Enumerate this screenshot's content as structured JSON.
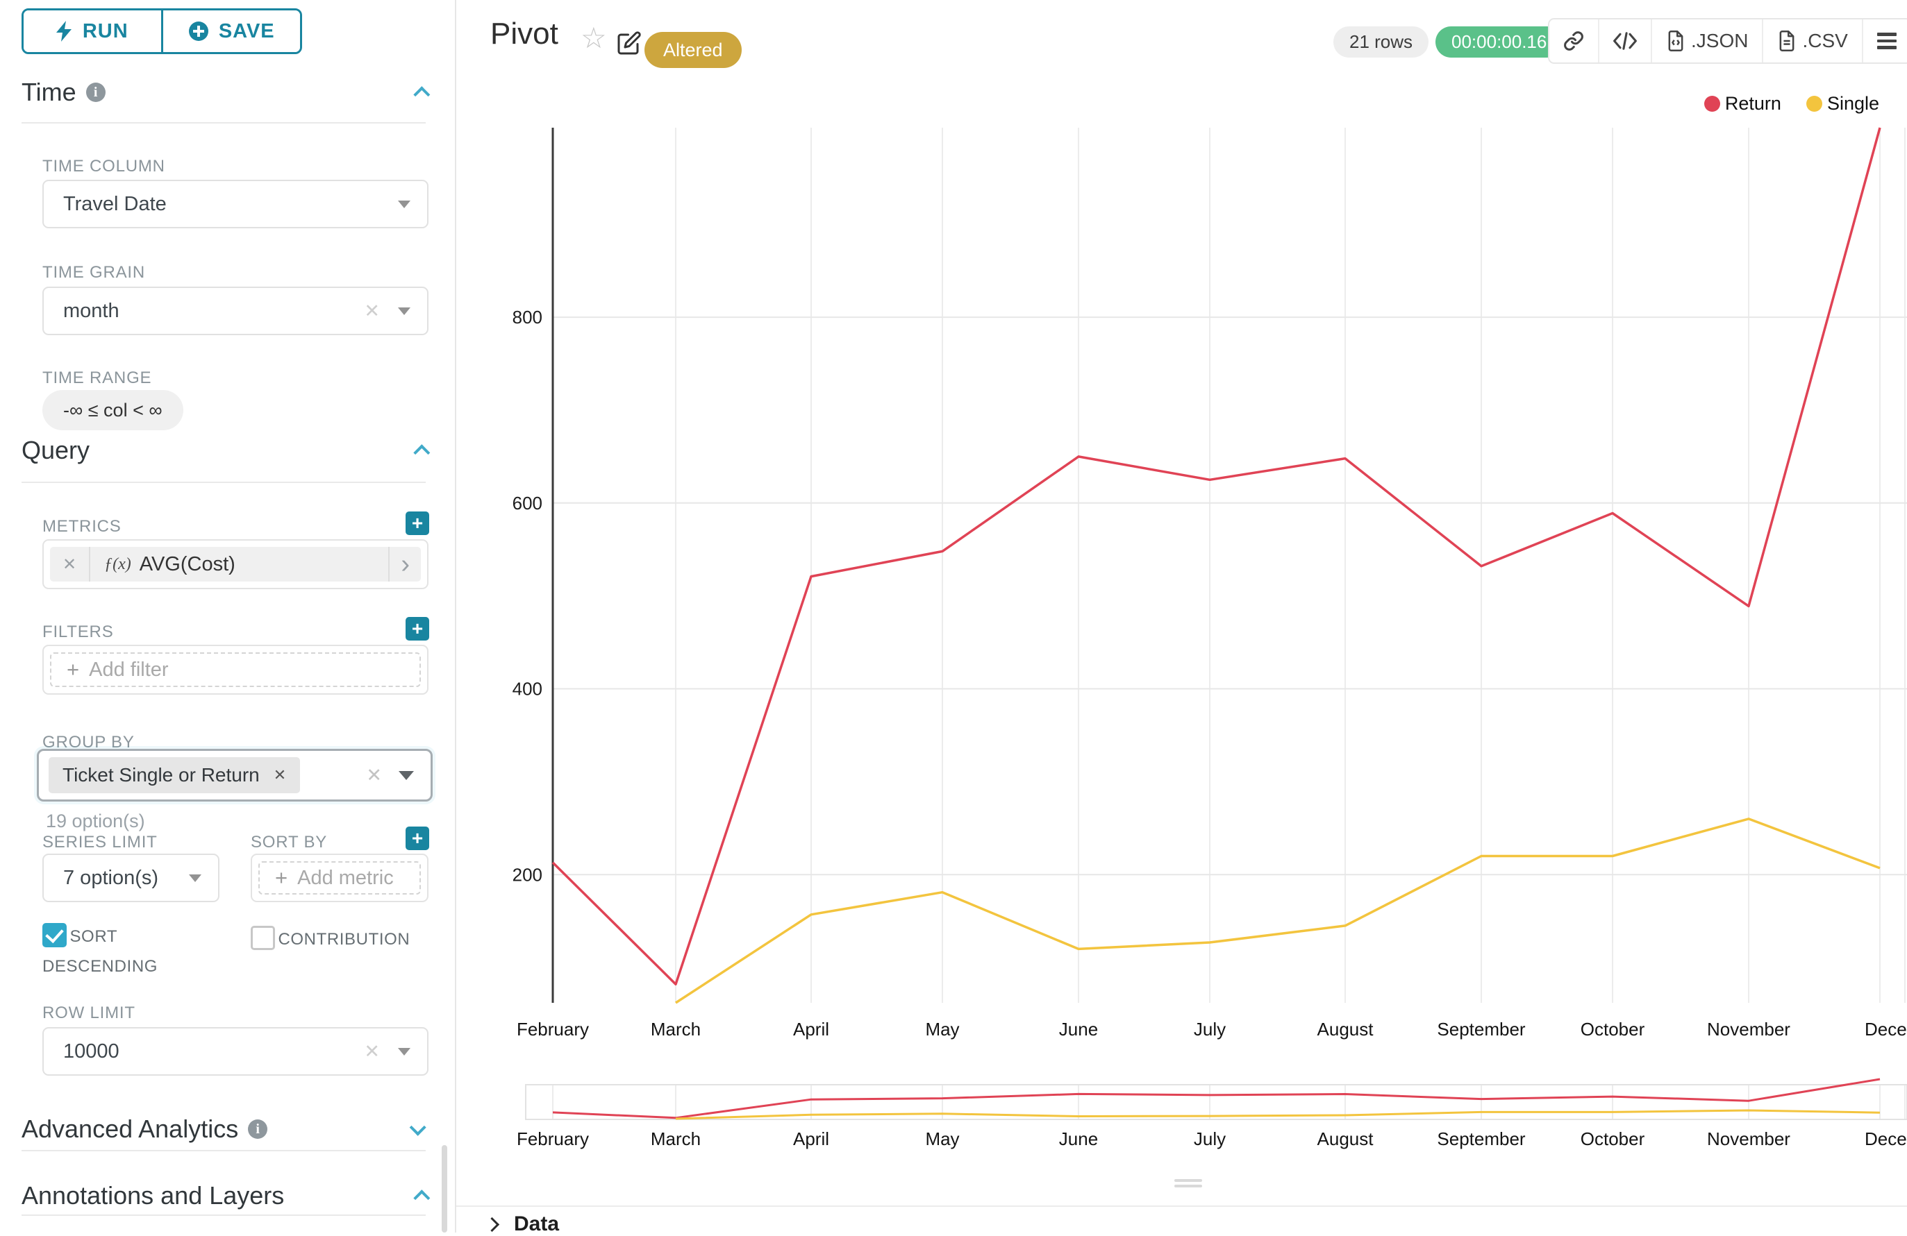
{
  "sidebar": {
    "run_label": "RUN",
    "save_label": "SAVE",
    "time": {
      "title": "Time",
      "column_label": "TIME COLUMN",
      "column_value": "Travel Date",
      "grain_label": "TIME GRAIN",
      "grain_value": "month",
      "range_label": "TIME RANGE",
      "range_value": "-∞ ≤ col < ∞"
    },
    "query": {
      "title": "Query",
      "metrics_label": "METRICS",
      "metric_fx": "ƒ(x)",
      "metric_value": "AVG(Cost)",
      "filters_label": "FILTERS",
      "add_filter_label": "Add filter",
      "group_by_label": "GROUP BY",
      "group_by_tag": "Ticket Single or Return",
      "options_hint": "19 option(s)",
      "series_limit_label": "SERIES LIMIT",
      "series_limit_value": "7 option(s)",
      "sort_by_label": "SORT BY",
      "add_metric_label": "Add metric",
      "sort_descending_label": "SORT DESCENDING",
      "sort_descending_checked": true,
      "contribution_label": "CONTRIBUTION",
      "contribution_checked": false,
      "row_limit_label": "ROW LIMIT",
      "row_limit_value": "10000"
    },
    "advanced_title": "Advanced Analytics",
    "annotations_title": "Annotations and Layers"
  },
  "header": {
    "title": "Pivot",
    "altered_badge": "Altered",
    "rows_badge": "21 rows",
    "timer_badge": "00:00:00.16",
    "export_json": ".JSON",
    "export_csv": ".CSV"
  },
  "footer": {
    "data_label": "Data"
  },
  "colors": {
    "accent": "#1985a0",
    "accent_light": "#41aac9",
    "altered_badge": "#cda63e",
    "timer_badge": "#5ac189"
  },
  "chart_data": {
    "type": "line",
    "title": "",
    "x_tick_labels": [
      "February",
      "March",
      "April",
      "May",
      "June",
      "July",
      "August",
      "September",
      "October",
      "November",
      "December"
    ],
    "series": [
      {
        "name": "Return",
        "color": "#e04355",
        "values": [
          213,
          82,
          521,
          548,
          650,
          625,
          648,
          532,
          589,
          489,
          1004
        ]
      },
      {
        "name": "Single",
        "color": "#f3c43e",
        "values": [
          null,
          62,
          157,
          181,
          120,
          127,
          145,
          220,
          220,
          260,
          207
        ]
      }
    ],
    "ylabel": "",
    "xlabel": "",
    "ylim": [
      62,
      1004
    ],
    "yticks": [
      200,
      400,
      600,
      800
    ],
    "grid": true,
    "legend_position": "top-right",
    "has_focus_mini_chart": true
  }
}
